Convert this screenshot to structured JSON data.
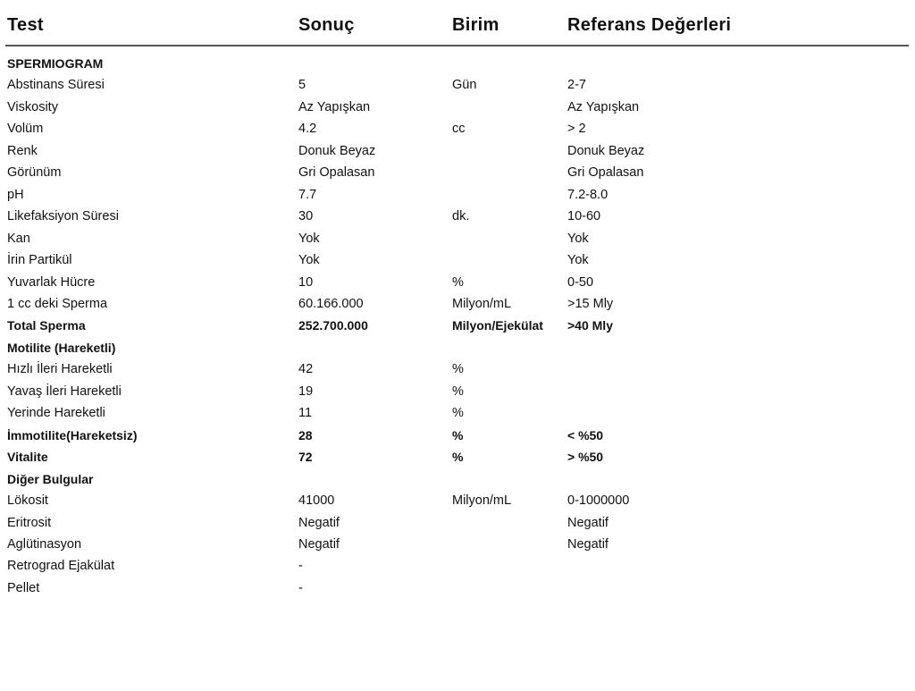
{
  "header": {
    "test": "Test",
    "result": "Sonuç",
    "unit": "Birim",
    "reference": "Referans Değerleri"
  },
  "rows": [
    {
      "test": "SPERMIOGRAM",
      "result": "",
      "unit": "",
      "reference": "",
      "bold": true
    },
    {
      "test": "Abstinans Süresi",
      "result": "5",
      "unit": "Gün",
      "reference": "2-7"
    },
    {
      "test": "Viskosity",
      "result": "Az Yapışkan",
      "unit": "",
      "reference": "Az Yapışkan"
    },
    {
      "test": "Volüm",
      "result": "4.2",
      "unit": "cc",
      "reference": "> 2"
    },
    {
      "test": "Renk",
      "result": "Donuk Beyaz",
      "unit": "",
      "reference": "Donuk Beyaz"
    },
    {
      "test": "Görünüm",
      "result": "Gri Opalasan",
      "unit": "",
      "reference": "Gri Opalasan"
    },
    {
      "test": "pH",
      "result": "7.7",
      "unit": "",
      "reference": "7.2-8.0"
    },
    {
      "test": "Likefaksiyon Süresi",
      "result": "30",
      "unit": "dk.",
      "reference": "10-60"
    },
    {
      "test": "Kan",
      "result": "Yok",
      "unit": "",
      "reference": "Yok"
    },
    {
      "test": "İrin Partikül",
      "result": "Yok",
      "unit": "",
      "reference": "Yok"
    },
    {
      "test": "Yuvarlak Hücre",
      "result": "10",
      "unit": "%",
      "reference": "0-50"
    },
    {
      "test": "1 cc deki Sperma",
      "result": "60.166.000",
      "unit": "Milyon/mL",
      "reference": ">15 Mly"
    },
    {
      "test": "Total Sperma",
      "result": "252.700.000",
      "unit": "Milyon/Ejekülat",
      "reference": ">40 Mly",
      "bold": true
    },
    {
      "test": "Motilite (Hareketli)",
      "result": "",
      "unit": "",
      "reference": "",
      "bold": true
    },
    {
      "test": "Hızlı İleri Hareketli",
      "result": "42",
      "unit": "%",
      "reference": ""
    },
    {
      "test": "Yavaş İleri Hareketli",
      "result": "19",
      "unit": "%",
      "reference": ""
    },
    {
      "test": "Yerinde Hareketli",
      "result": "11",
      "unit": "%",
      "reference": ""
    },
    {
      "test": "İmmotilite(Hareketsiz)",
      "result": "28",
      "unit": "%",
      "reference": "< %50",
      "bold": true
    },
    {
      "test": "Vitalite",
      "result": "72",
      "unit": "%",
      "reference": "> %50",
      "bold": true
    },
    {
      "test": "Diğer Bulgular",
      "result": "",
      "unit": "",
      "reference": "",
      "bold": true
    },
    {
      "test": "Lökosit",
      "result": "41000",
      "unit": "Milyon/mL",
      "reference": "0-1000000"
    },
    {
      "test": "Eritrosit",
      "result": "Negatif",
      "unit": "",
      "reference": "Negatif"
    },
    {
      "test": "Aglütinasyon",
      "result": "Negatif",
      "unit": "",
      "reference": "Negatif"
    },
    {
      "test": "Retrograd Ejakülat",
      "result": "-",
      "unit": "",
      "reference": ""
    },
    {
      "test": "Pellet",
      "result": "-",
      "unit": "",
      "reference": ""
    }
  ]
}
